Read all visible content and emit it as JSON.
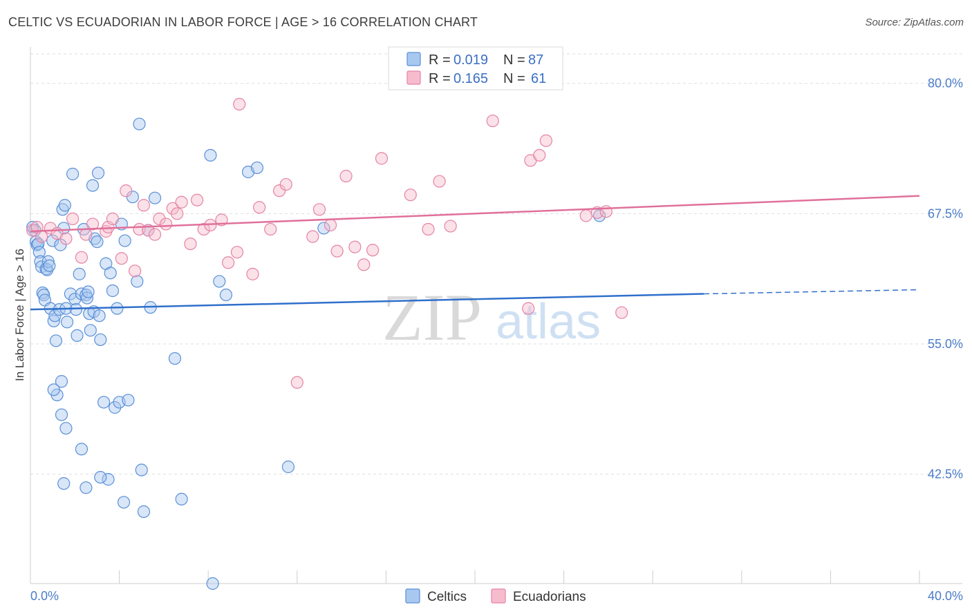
{
  "title": "CELTIC VS ECUADORIAN IN LABOR FORCE | AGE > 16 CORRELATION CHART",
  "source": "Source: ZipAtlas.com",
  "watermark": {
    "zip": "ZIP",
    "atlas": "atlas"
  },
  "colors": {
    "celtics_fill": "#a9c8f0",
    "celtics_stroke": "#5a8fd6",
    "celtics_line": "#2f6fcb",
    "ecuadorians_fill": "#f6bccd",
    "ecuadorians_stroke": "#e483a4",
    "ecuadorians_line": "#e0709a",
    "grid": "#dddddd",
    "axis_text": "#4a7cc9"
  },
  "legend": {
    "celtics": {
      "r_label": "R =",
      "r_value": "0.019",
      "n_label": "N =",
      "n_value": "87"
    },
    "ecuadorians": {
      "r_label": "R =",
      "r_value": "0.165",
      "n_label": "N =",
      "n_value": "61"
    }
  },
  "chart_data": {
    "type": "scatter",
    "title": "CELTIC VS ECUADORIAN IN LABOR FORCE | AGE > 16 CORRELATION CHART",
    "xlabel": "",
    "ylabel": "In Labor Force | Age > 16",
    "xlim": [
      0,
      40
    ],
    "ylim": [
      32.0,
      82.5
    ],
    "x_tick_labels": [
      "0.0%",
      "40.0%"
    ],
    "y_ticks": [
      42.5,
      55.0,
      67.5,
      80.0
    ],
    "y_tick_labels": [
      "42.5%",
      "55.0%",
      "67.5%",
      "80.0%"
    ],
    "grid": true,
    "legend_position": "top-center",
    "series": [
      {
        "name": "Celtics",
        "R": 0.019,
        "N": 87,
        "trend": {
          "x0": 0.0,
          "y0": 58.3,
          "x1": 30.3,
          "y1": 59.8,
          "dash_to_x": 40.0,
          "dash_to_y": 60.2
        },
        "points": [
          [
            0.1,
            66.2
          ],
          [
            0.2,
            65.9
          ],
          [
            0.25,
            64.8
          ],
          [
            0.3,
            64.5
          ],
          [
            0.35,
            64.6
          ],
          [
            0.4,
            63.8
          ],
          [
            0.45,
            62.9
          ],
          [
            0.5,
            62.4
          ],
          [
            0.55,
            59.9
          ],
          [
            0.6,
            59.7
          ],
          [
            0.65,
            59.2
          ],
          [
            0.7,
            62.2
          ],
          [
            0.75,
            62.1
          ],
          [
            0.8,
            62.9
          ],
          [
            0.85,
            62.5
          ],
          [
            0.9,
            58.4
          ],
          [
            1.0,
            64.9
          ],
          [
            1.05,
            57.2
          ],
          [
            1.1,
            57.7
          ],
          [
            1.15,
            55.3
          ],
          [
            1.2,
            50.1
          ],
          [
            1.3,
            58.3
          ],
          [
            1.35,
            64.5
          ],
          [
            1.4,
            51.4
          ],
          [
            1.45,
            67.9
          ],
          [
            1.5,
            66.1
          ],
          [
            1.55,
            68.3
          ],
          [
            1.6,
            58.4
          ],
          [
            1.65,
            57.1
          ],
          [
            1.8,
            59.8
          ],
          [
            1.9,
            71.3
          ],
          [
            2.0,
            59.3
          ],
          [
            2.05,
            58.3
          ],
          [
            2.1,
            55.8
          ],
          [
            2.2,
            61.7
          ],
          [
            2.3,
            59.8
          ],
          [
            2.4,
            66.0
          ],
          [
            2.5,
            59.7
          ],
          [
            2.55,
            59.4
          ],
          [
            2.6,
            60.0
          ],
          [
            2.65,
            57.9
          ],
          [
            2.7,
            56.3
          ],
          [
            2.8,
            70.2
          ],
          [
            2.85,
            58.1
          ],
          [
            2.9,
            65.1
          ],
          [
            3.0,
            64.8
          ],
          [
            3.1,
            57.7
          ],
          [
            3.05,
            71.4
          ],
          [
            3.15,
            55.4
          ],
          [
            3.3,
            49.4
          ],
          [
            3.4,
            62.7
          ],
          [
            3.5,
            42.0
          ],
          [
            3.6,
            61.8
          ],
          [
            3.7,
            60.1
          ],
          [
            3.8,
            48.9
          ],
          [
            3.9,
            58.4
          ],
          [
            4.0,
            49.4
          ],
          [
            4.1,
            66.5
          ],
          [
            4.2,
            39.8
          ],
          [
            4.25,
            64.9
          ],
          [
            4.4,
            49.6
          ],
          [
            4.6,
            69.1
          ],
          [
            4.8,
            61.0
          ],
          [
            4.9,
            76.1
          ],
          [
            5.0,
            42.9
          ],
          [
            5.1,
            38.9
          ],
          [
            5.3,
            65.9
          ],
          [
            5.4,
            58.5
          ],
          [
            5.6,
            69.0
          ],
          [
            6.5,
            53.6
          ],
          [
            6.8,
            40.1
          ],
          [
            8.1,
            73.1
          ],
          [
            8.2,
            32.0
          ],
          [
            8.5,
            61.0
          ],
          [
            8.8,
            59.7
          ],
          [
            9.8,
            71.5
          ],
          [
            10.2,
            71.9
          ],
          [
            11.6,
            43.2
          ],
          [
            13.2,
            66.1
          ],
          [
            25.6,
            67.3
          ],
          [
            1.05,
            50.6
          ],
          [
            1.4,
            48.2
          ],
          [
            1.6,
            46.9
          ],
          [
            2.3,
            44.9
          ],
          [
            2.5,
            41.2
          ],
          [
            1.5,
            41.6
          ],
          [
            3.15,
            42.2
          ]
        ]
      },
      {
        "name": "Ecuadorians",
        "R": 0.165,
        "N": 61,
        "trend": {
          "x0": 0.0,
          "y0": 65.8,
          "x1": 40.0,
          "y1": 69.2
        },
        "points": [
          [
            0.1,
            65.9
          ],
          [
            0.3,
            66.2
          ],
          [
            0.5,
            65.3
          ],
          [
            0.9,
            66.1
          ],
          [
            1.2,
            65.6
          ],
          [
            1.6,
            65.1
          ],
          [
            1.9,
            67.0
          ],
          [
            2.3,
            63.3
          ],
          [
            2.5,
            65.5
          ],
          [
            2.8,
            66.5
          ],
          [
            3.4,
            65.8
          ],
          [
            3.5,
            66.2
          ],
          [
            3.7,
            67.0
          ],
          [
            4.1,
            63.2
          ],
          [
            4.3,
            69.7
          ],
          [
            4.7,
            62.0
          ],
          [
            4.9,
            66.0
          ],
          [
            5.1,
            68.3
          ],
          [
            5.3,
            65.9
          ],
          [
            5.6,
            65.5
          ],
          [
            5.8,
            67.0
          ],
          [
            6.1,
            66.5
          ],
          [
            6.4,
            68.0
          ],
          [
            6.6,
            67.5
          ],
          [
            6.8,
            68.6
          ],
          [
            7.2,
            64.6
          ],
          [
            7.5,
            68.8
          ],
          [
            7.8,
            66.0
          ],
          [
            8.1,
            66.4
          ],
          [
            8.6,
            66.9
          ],
          [
            8.9,
            62.8
          ],
          [
            9.3,
            63.8
          ],
          [
            9.4,
            78.0
          ],
          [
            10.0,
            61.7
          ],
          [
            10.3,
            68.1
          ],
          [
            10.8,
            66.0
          ],
          [
            11.2,
            69.7
          ],
          [
            11.5,
            70.3
          ],
          [
            12.0,
            51.3
          ],
          [
            12.7,
            65.3
          ],
          [
            13.0,
            67.9
          ],
          [
            13.5,
            66.4
          ],
          [
            13.8,
            63.9
          ],
          [
            14.2,
            71.1
          ],
          [
            14.6,
            64.3
          ],
          [
            15.0,
            62.6
          ],
          [
            15.4,
            64.0
          ],
          [
            15.8,
            72.8
          ],
          [
            17.1,
            69.3
          ],
          [
            17.9,
            66.0
          ],
          [
            18.4,
            70.6
          ],
          [
            18.9,
            66.3
          ],
          [
            20.8,
            76.4
          ],
          [
            22.4,
            58.4
          ],
          [
            22.5,
            72.6
          ],
          [
            22.9,
            73.1
          ],
          [
            23.2,
            74.5
          ],
          [
            25.0,
            67.3
          ],
          [
            25.5,
            67.6
          ],
          [
            25.9,
            67.7
          ],
          [
            26.6,
            58.0
          ]
        ]
      }
    ]
  },
  "bottom_legend": {
    "celtics": "Celtics",
    "ecuadorians": "Ecuadorians"
  }
}
